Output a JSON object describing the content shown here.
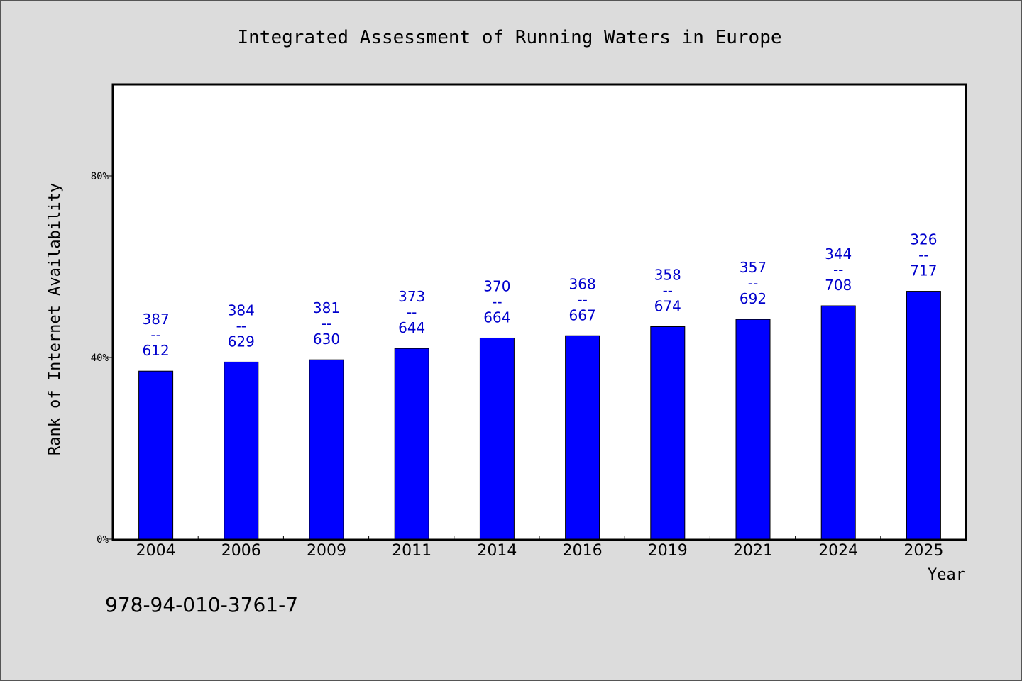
{
  "colors": {
    "background": "#dcdcdc",
    "plot_background": "#ffffff",
    "bar": "#0000ff",
    "data_label": "#0000cc",
    "axis": "#000000"
  },
  "footer_code": "978-94-010-3761-7",
  "chart_data": {
    "type": "bar",
    "title": "Integrated Assessment of Running Waters in Europe",
    "xlabel": "Year",
    "ylabel": "Rank of Internet Availability",
    "categories": [
      "2004",
      "2006",
      "2009",
      "2011",
      "2014",
      "2016",
      "2019",
      "2021",
      "2024",
      "2025"
    ],
    "values": [
      37,
      39,
      39.5,
      42,
      44.3,
      44.8,
      46.8,
      48.4,
      51.4,
      54.6
    ],
    "labels": [
      [
        "387",
        "--",
        "612"
      ],
      [
        "384",
        "--",
        "629"
      ],
      [
        "381",
        "--",
        "630"
      ],
      [
        "373",
        "--",
        "644"
      ],
      [
        "370",
        "--",
        "664"
      ],
      [
        "368",
        "--",
        "667"
      ],
      [
        "358",
        "--",
        "674"
      ],
      [
        "357",
        "--",
        "692"
      ],
      [
        "344",
        "--",
        "708"
      ],
      [
        "326",
        "--",
        "717"
      ]
    ],
    "ylim": [
      0,
      100
    ],
    "yticks": [
      {
        "value": 0,
        "label": "0%"
      },
      {
        "value": 40,
        "label": "40%"
      },
      {
        "value": 80,
        "label": "80%"
      }
    ],
    "grid": false,
    "legend": "none"
  }
}
